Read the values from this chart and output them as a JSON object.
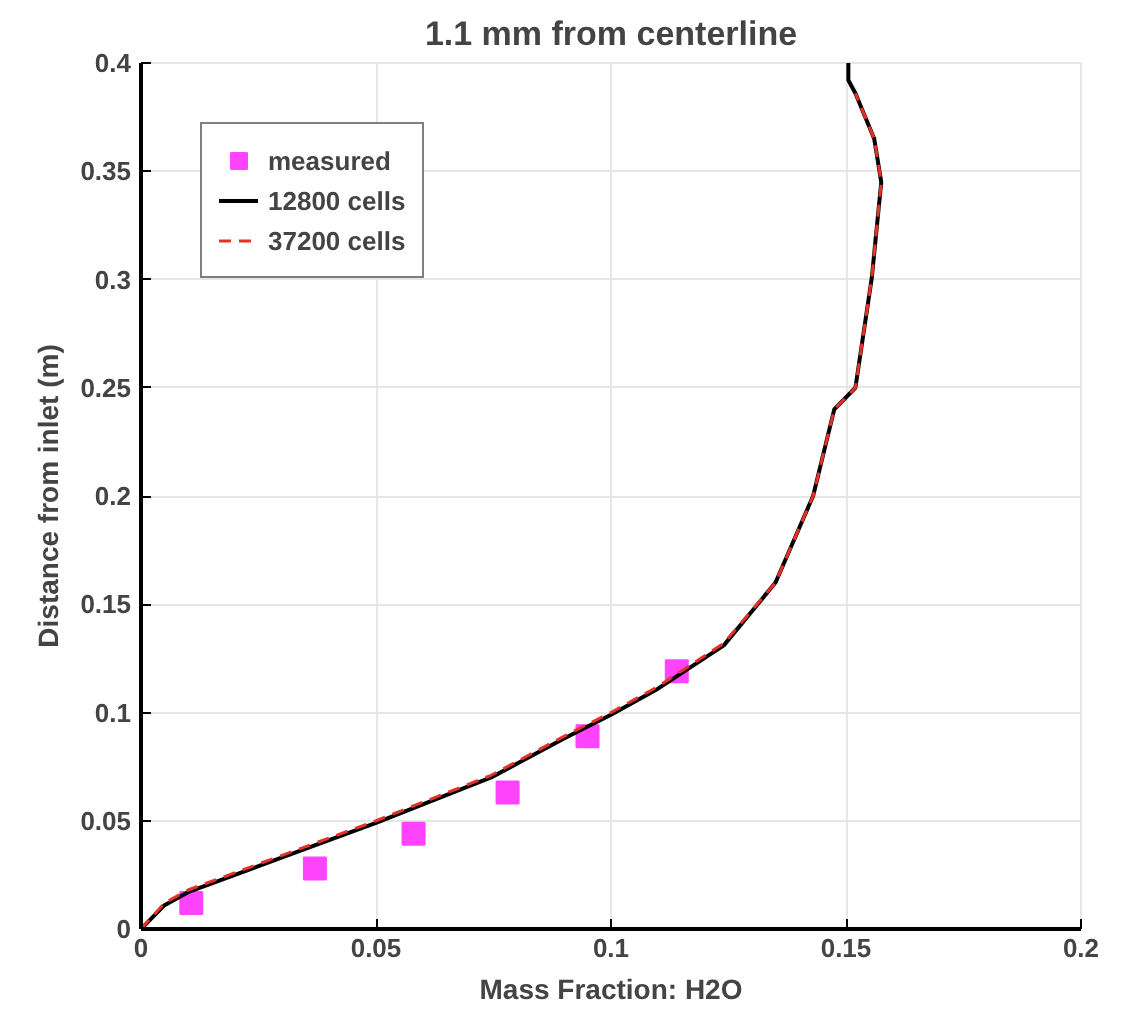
{
  "chart_data": {
    "type": "line",
    "title": "1.1 mm from centerline",
    "xlabel": "Mass Fraction: H2O",
    "ylabel": "Distance from inlet (m)",
    "xlim": [
      0,
      0.2
    ],
    "ylim": [
      0,
      0.4
    ],
    "xticks": [
      0,
      0.05,
      0.1,
      0.15,
      0.2
    ],
    "yticks": [
      0,
      0.05,
      0.1,
      0.15,
      0.2,
      0.25,
      0.3,
      0.35,
      0.4
    ],
    "grid": true,
    "legend": "top left",
    "series": [
      {
        "name": "measured",
        "type": "scatter",
        "marker": "square",
        "color": "#ff44ff",
        "x": [
          0.0107,
          0.037,
          0.058,
          0.078,
          0.095,
          0.114
        ],
        "values": [
          0.012,
          0.028,
          0.044,
          0.063,
          0.089,
          0.119
        ]
      },
      {
        "name": "12800 cells",
        "line_style": "solid",
        "color": "#000000",
        "x": [
          0,
          0.005,
          0.01,
          0.025,
          0.04,
          0.05,
          0.0745,
          0.09,
          0.1,
          0.11,
          0.124,
          0.135,
          0.137,
          0.143,
          0.1475,
          0.152,
          0.1555,
          0.1575,
          0.156,
          0.152,
          0.1505,
          0.1505
        ],
        "values": [
          0,
          0.011,
          0.017,
          0.029,
          0.041,
          0.049,
          0.07,
          0.088,
          0.099,
          0.111,
          0.131,
          0.16,
          0.17,
          0.2,
          0.24,
          0.25,
          0.301,
          0.345,
          0.365,
          0.386,
          0.392,
          0.4
        ]
      },
      {
        "name": "37200 cells",
        "line_style": "dashed",
        "color": "#e8302a",
        "x": [
          0,
          0.005,
          0.01,
          0.025,
          0.04,
          0.05,
          0.0745,
          0.09,
          0.1,
          0.11,
          0.124,
          0.135,
          0.137,
          0.143,
          0.1475,
          0.152,
          0.1555,
          0.1575,
          0.156,
          0.152
        ],
        "values": [
          0,
          0.012,
          0.018,
          0.03,
          0.042,
          0.05,
          0.071,
          0.089,
          0.1,
          0.112,
          0.132,
          0.16,
          0.17,
          0.2,
          0.24,
          0.25,
          0.301,
          0.345,
          0.365,
          0.386
        ]
      }
    ]
  }
}
